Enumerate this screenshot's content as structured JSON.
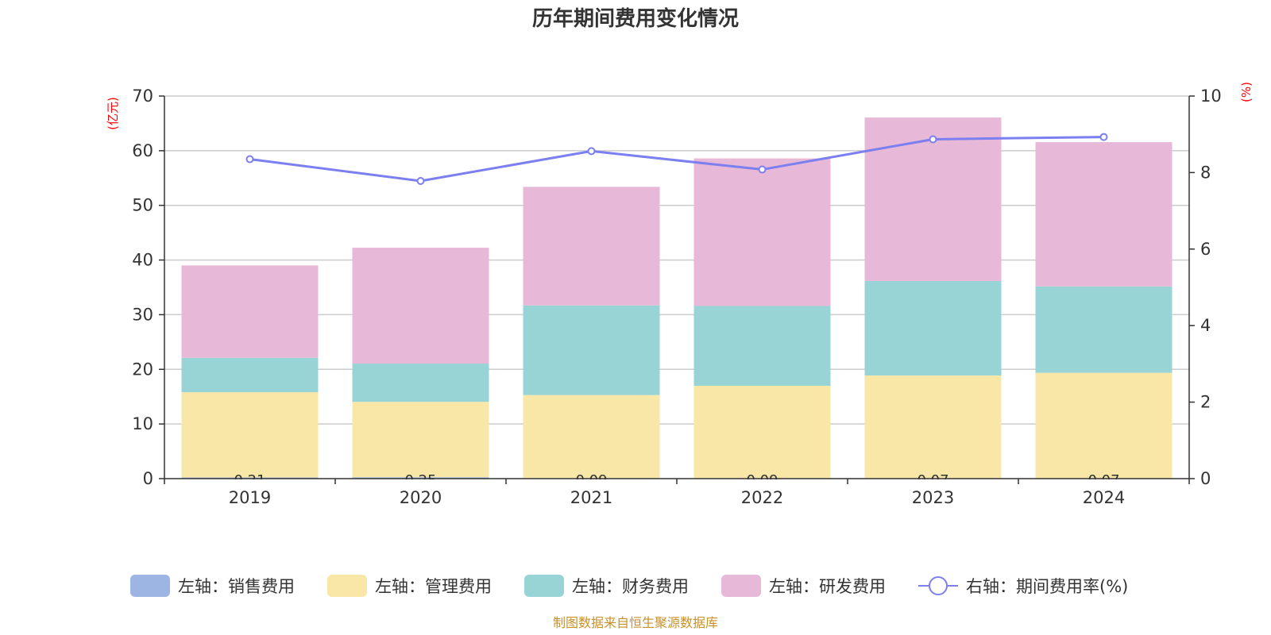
{
  "chart_data": {
    "type": "bar",
    "title": "历年期间费用变化情况",
    "categories": [
      "2019",
      "2020",
      "2021",
      "2022",
      "2023",
      "2024"
    ],
    "left_axis": {
      "unit": "(亿元)",
      "ylim": [
        0,
        70
      ],
      "ticks": [
        "0",
        "10",
        "20",
        "30",
        "40",
        "50",
        "60",
        "70"
      ]
    },
    "right_axis": {
      "unit": "(%)",
      "ylim": [
        0,
        10
      ],
      "ticks": [
        "0",
        "2",
        "4",
        "6",
        "8",
        "10"
      ]
    },
    "series": [
      {
        "name": "左轴：销售费用",
        "axis": "left",
        "kind": "bar",
        "color": "#9db5e3",
        "values": [
          0.21,
          0.25,
          0.09,
          0.09,
          0.07,
          0.07
        ],
        "labels": [
          "0.21",
          "0.25",
          "0.09",
          "0.09",
          "0.07",
          "0.07"
        ]
      },
      {
        "name": "左轴：管理费用",
        "axis": "left",
        "kind": "bar",
        "color": "#f8e7a7",
        "values": [
          15.6,
          13.8,
          15.2,
          16.9,
          18.8,
          19.3
        ]
      },
      {
        "name": "左轴：财务费用",
        "axis": "left",
        "kind": "bar",
        "color": "#98d4d5",
        "values": [
          6.3,
          7.0,
          16.4,
          14.6,
          17.3,
          15.8
        ]
      },
      {
        "name": "左轴：研发费用",
        "axis": "left",
        "kind": "bar",
        "color": "#e8b8d8",
        "values": [
          16.9,
          21.2,
          21.7,
          27.0,
          29.9,
          26.4
        ]
      },
      {
        "name": "右轴：期间费用率(%)",
        "axis": "right",
        "kind": "line",
        "color": "#7b7ff0",
        "values": [
          8.35,
          7.78,
          8.56,
          8.08,
          8.87,
          8.93
        ]
      }
    ]
  },
  "source_note": "制图数据来自恒生聚源数据库"
}
